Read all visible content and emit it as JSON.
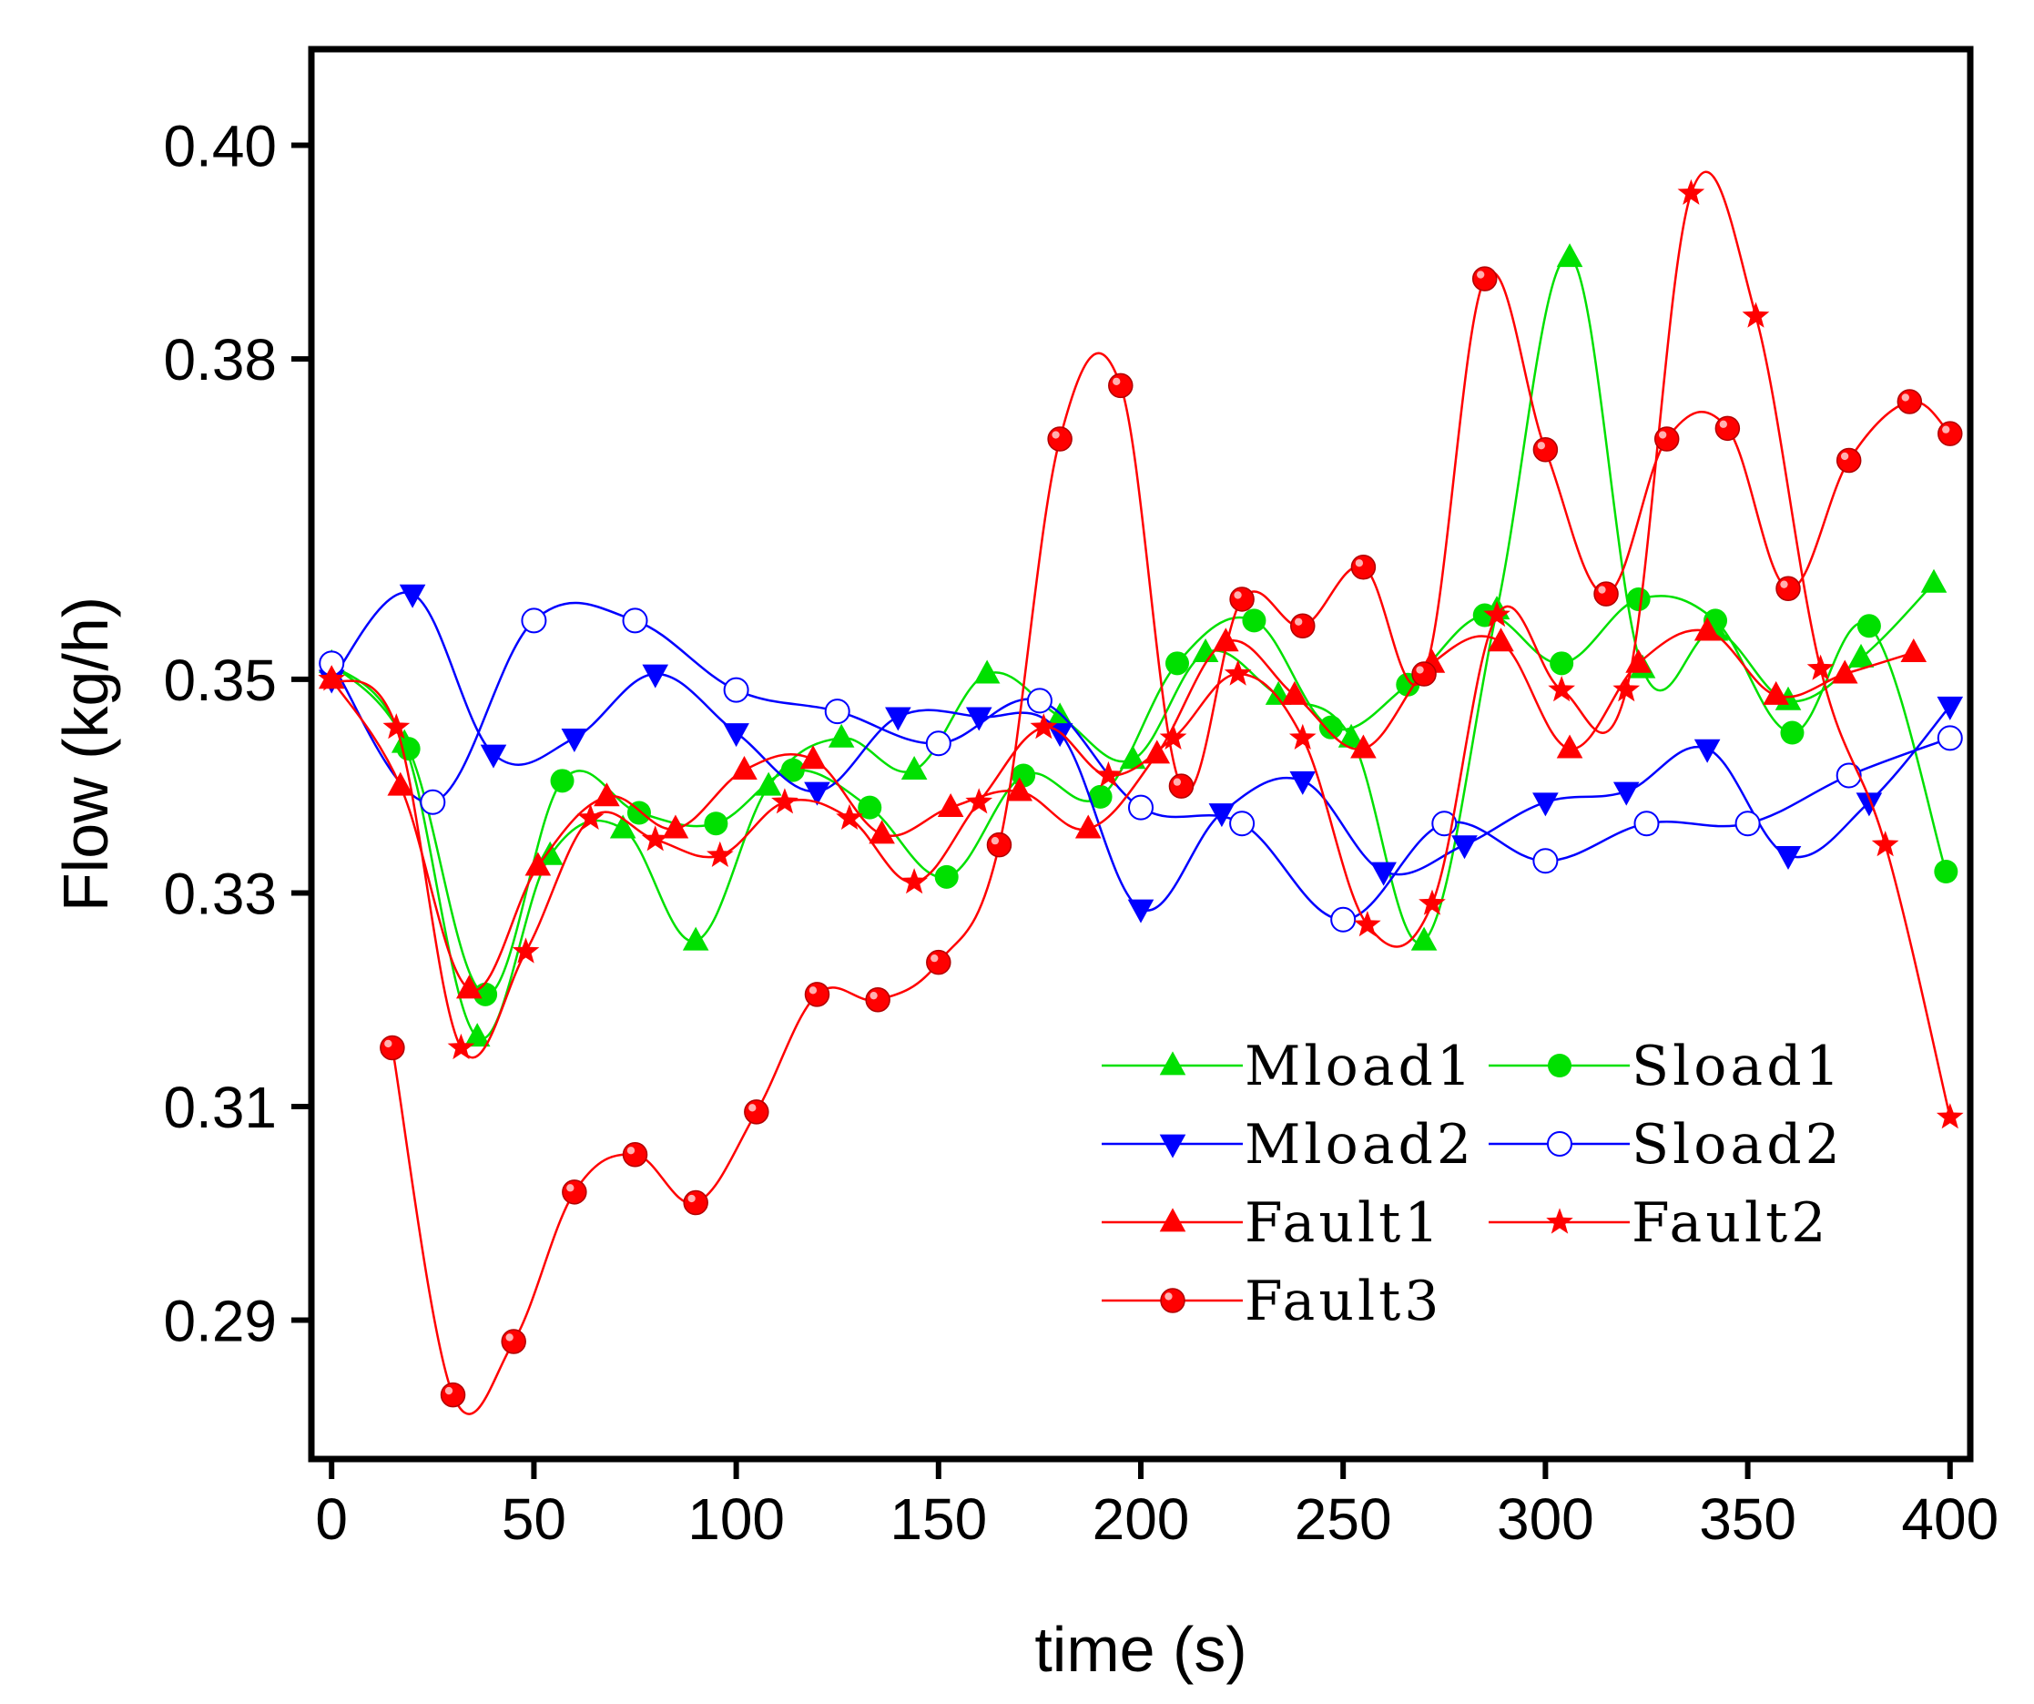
{
  "chart_data": {
    "type": "line",
    "title": "",
    "xlabel": "time (s)",
    "ylabel": "Flow (kg/h)",
    "xlim": [
      -5,
      405
    ],
    "ylim": [
      0.277,
      0.409
    ],
    "xticks": [
      0,
      50,
      100,
      150,
      200,
      250,
      300,
      350,
      400
    ],
    "xtick_labels": [
      "0",
      "50",
      "100",
      "150",
      "200",
      "250",
      "300",
      "350",
      "400"
    ],
    "yticks": [
      0.29,
      0.31,
      0.33,
      0.35,
      0.38,
      0.4
    ],
    "ytick_labels": [
      "0.29",
      "0.31",
      "0.33",
      "0.35",
      "0.38",
      "0.40"
    ],
    "legend_position": "bottom-right",
    "series": [
      {
        "name": "Mload1",
        "color": "#00e000",
        "marker": "triangle-up",
        "x": [
          0,
          18,
          36,
          54,
          72,
          90,
          108,
          126,
          144,
          162,
          180,
          198,
          216,
          234,
          252,
          270,
          288,
          306,
          324,
          342,
          360,
          378,
          396
        ],
        "y": [
          0.3515,
          0.344,
          0.3165,
          0.3335,
          0.336,
          0.3255,
          0.34,
          0.3445,
          0.3415,
          0.3505,
          0.3465,
          0.3425,
          0.3525,
          0.3485,
          0.3445,
          0.3255,
          0.3565,
          0.3895,
          0.351,
          0.3545,
          0.348,
          0.352,
          0.359
        ]
      },
      {
        "name": "Sload1",
        "color": "#00e000",
        "marker": "circle",
        "x": [
          0,
          19,
          38,
          57,
          76,
          95,
          114,
          133,
          152,
          171,
          190,
          209,
          228,
          247,
          266,
          285,
          304,
          323,
          342,
          361,
          380,
          399
        ],
        "y": [
          0.3515,
          0.3435,
          0.3205,
          0.3405,
          0.3375,
          0.3365,
          0.3415,
          0.338,
          0.3315,
          0.341,
          0.339,
          0.3515,
          0.3555,
          0.3455,
          0.3495,
          0.356,
          0.3515,
          0.3575,
          0.3555,
          0.345,
          0.355,
          0.332
        ]
      },
      {
        "name": "Mload2",
        "color": "#0000ff",
        "marker": "triangle-down",
        "x": [
          0,
          20,
          40,
          60,
          80,
          100,
          120,
          140,
          160,
          180,
          200,
          220,
          240,
          260,
          280,
          300,
          320,
          340,
          360,
          380,
          400
        ],
        "y": [
          0.35,
          0.358,
          0.343,
          0.3445,
          0.3505,
          0.345,
          0.3395,
          0.3465,
          0.3465,
          0.345,
          0.3285,
          0.3375,
          0.3405,
          0.332,
          0.3345,
          0.3385,
          0.3395,
          0.3435,
          0.3335,
          0.3385,
          0.3475
        ]
      },
      {
        "name": "Sload2",
        "color": "#0000ff",
        "marker": "open-circle",
        "x": [
          0,
          25,
          50,
          75,
          100,
          125,
          150,
          175,
          200,
          225,
          250,
          275,
          300,
          325,
          350,
          375,
          400
        ],
        "y": [
          0.3515,
          0.3385,
          0.3555,
          0.3555,
          0.349,
          0.347,
          0.344,
          0.348,
          0.338,
          0.3365,
          0.3275,
          0.3365,
          0.333,
          0.3365,
          0.3365,
          0.341,
          0.3445
        ]
      },
      {
        "name": "Fault1",
        "color": "#ff0000",
        "marker": "triangle-up",
        "x": [
          0,
          17,
          34,
          51,
          68,
          85,
          102,
          119,
          136,
          153,
          170,
          187,
          204,
          221,
          238,
          255,
          272,
          289,
          306,
          323,
          340,
          357,
          374,
          391
        ],
        "y": [
          0.35,
          0.34,
          0.321,
          0.3325,
          0.339,
          0.336,
          0.3415,
          0.3425,
          0.3355,
          0.338,
          0.3395,
          0.336,
          0.343,
          0.3535,
          0.3485,
          0.3435,
          0.3515,
          0.3535,
          0.3435,
          0.3515,
          0.3545,
          0.3485,
          0.3505,
          0.3525
        ]
      },
      {
        "name": "Fault2",
        "color": "#ff0000",
        "marker": "star",
        "x": [
          0,
          16,
          32,
          48,
          64,
          80,
          96,
          112,
          128,
          144,
          160,
          176,
          192,
          208,
          224,
          240,
          256,
          272,
          288,
          304,
          320,
          336,
          352,
          368,
          384,
          400
        ],
        "y": [
          0.35,
          0.3455,
          0.3155,
          0.3245,
          0.337,
          0.335,
          0.3335,
          0.3385,
          0.337,
          0.331,
          0.3385,
          0.3455,
          0.341,
          0.3445,
          0.3505,
          0.3445,
          0.327,
          0.329,
          0.356,
          0.349,
          0.349,
          0.3955,
          0.384,
          0.351,
          0.3345,
          0.309
        ]
      },
      {
        "name": "Fault3",
        "color": "#ff0000",
        "marker": "ball",
        "x": [
          15,
          30,
          45,
          60,
          75,
          90,
          105,
          120,
          135,
          150,
          165,
          180,
          195,
          210,
          225,
          240,
          255,
          270,
          285,
          300,
          315,
          330,
          345,
          360,
          375,
          390,
          400
        ],
        "y": [
          0.3155,
          0.283,
          0.288,
          0.302,
          0.3055,
          0.301,
          0.3095,
          0.3205,
          0.32,
          0.3235,
          0.3345,
          0.3725,
          0.3775,
          0.34,
          0.3575,
          0.355,
          0.3605,
          0.3505,
          0.3875,
          0.3715,
          0.358,
          0.3725,
          0.3735,
          0.3585,
          0.3705,
          0.376,
          0.373
        ]
      }
    ]
  }
}
